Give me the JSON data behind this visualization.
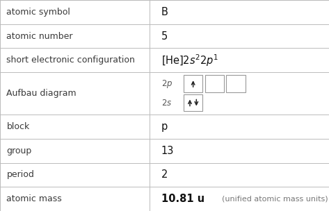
{
  "rows": [
    {
      "label": "atomic symbol",
      "value": "B",
      "type": "text",
      "bold": false
    },
    {
      "label": "atomic number",
      "value": "5",
      "type": "text",
      "bold": false
    },
    {
      "label": "short electronic configuration",
      "value": "",
      "type": "config"
    },
    {
      "label": "Aufbau diagram",
      "value": "",
      "type": "aufbau"
    },
    {
      "label": "block",
      "value": "p",
      "type": "text",
      "bold": false
    },
    {
      "label": "group",
      "value": "13",
      "type": "text",
      "bold": false
    },
    {
      "label": "period",
      "value": "2",
      "type": "text",
      "bold": false
    },
    {
      "label": "atomic mass",
      "value": "10.81 u",
      "value2": "(unified atomic mass units)",
      "type": "mass"
    }
  ],
  "row_heights": [
    1.0,
    1.0,
    1.0,
    1.75,
    1.0,
    1.0,
    1.0,
    1.0
  ],
  "col_split": 0.455,
  "bg_color": "#ffffff",
  "line_color": "#bbbbbb",
  "label_color": "#3a3a3a",
  "value_color": "#111111",
  "label_fontsize": 9.0,
  "value_fontsize": 10.5,
  "small_fontsize": 8.0,
  "font_family": "DejaVu Sans"
}
